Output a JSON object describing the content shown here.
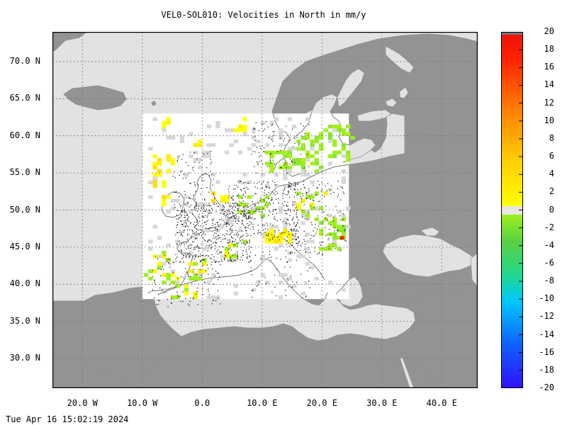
{
  "title": "VEL0-SOL010: Velocities in North in mm/y",
  "timestamp": "Tue Apr 16 15:02:19 2024",
  "map": {
    "lon_range": [
      -25,
      46
    ],
    "lat_range": [
      26,
      74
    ],
    "data_window": {
      "lon": [
        -10,
        24.5
      ],
      "lat": [
        38,
        63
      ]
    },
    "y_ticks": [
      {
        "lat": 70,
        "label": "70.0 N"
      },
      {
        "lat": 65,
        "label": "65.0 N"
      },
      {
        "lat": 60,
        "label": "60.0 N"
      },
      {
        "lat": 55,
        "label": "55.0 N"
      },
      {
        "lat": 50,
        "label": "50.0 N"
      },
      {
        "lat": 45,
        "label": "45.0 N"
      },
      {
        "lat": 40,
        "label": "40.0 N"
      },
      {
        "lat": 35,
        "label": "35.0 N"
      },
      {
        "lat": 30,
        "label": "30.0 N"
      }
    ],
    "x_ticks": [
      {
        "lon": -20,
        "label": "20.0 W"
      },
      {
        "lon": -10,
        "label": "10.0 W"
      },
      {
        "lon": 0,
        "label": "0.0"
      },
      {
        "lon": 10,
        "label": "10.0 E"
      },
      {
        "lon": 20,
        "label": "20.0 E"
      },
      {
        "lon": 30,
        "label": "30.0 E"
      },
      {
        "lon": 40,
        "label": "40.0 E"
      }
    ],
    "colors": {
      "sea": "#e2e2e2",
      "land": "#939393",
      "data_bg": "#ffffff",
      "grid": "#777777"
    }
  },
  "colorbar": {
    "min": -20,
    "max": 20,
    "labels": [
      "20",
      "18",
      "16",
      "14",
      "12",
      "10",
      "8",
      "6",
      "4",
      "2",
      "0",
      "-2",
      "-4",
      "-6",
      "-8",
      "-10",
      "-12",
      "-14",
      "-16",
      "-18",
      "-20"
    ],
    "stops": [
      "#3010ff",
      "#1060ff",
      "#00c8ff",
      "#20d890",
      "#5cd040",
      "#9cf020",
      "#ffff00",
      "#ffd000",
      "#ff8000",
      "#ff2000",
      "#f01010"
    ]
  }
}
